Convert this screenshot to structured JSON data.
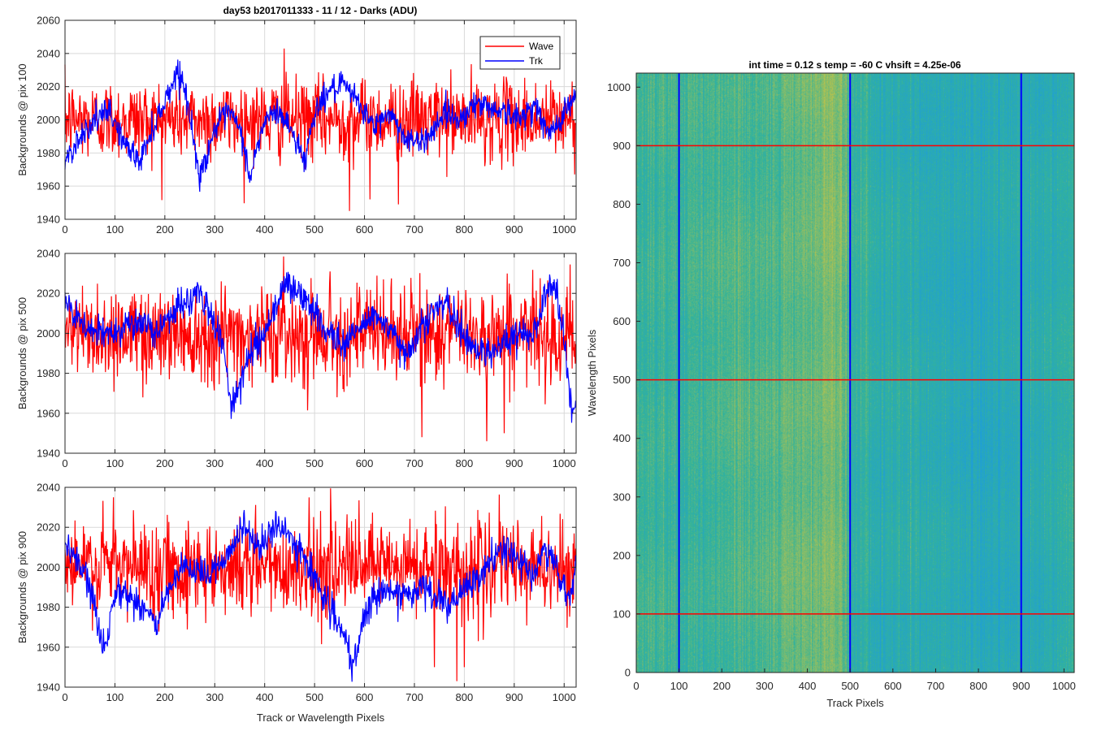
{
  "figure_title": "day53 b2017011333 - 11 / 12 - Darks (ADU)",
  "heatmap_title": "int time = 0.12 s    temp = -60 C    vhsift = 4.25e-06",
  "colors": {
    "wave": "#ff0000",
    "trk": "#0000ff",
    "grid": "#d9d9d9",
    "heat_low": "#1f9ed8",
    "heat_mid": "#33b39a",
    "heat_high": "#b8c24d"
  },
  "chart_data": [
    {
      "type": "line",
      "ylabel": "Backgrounds @ pix 100",
      "xlabel": "",
      "xlim": [
        0,
        1024
      ],
      "ylim": [
        1940,
        2060
      ],
      "xticks": [
        0,
        100,
        200,
        300,
        400,
        500,
        600,
        700,
        800,
        900,
        1000
      ],
      "yticks": [
        1940,
        1960,
        1980,
        2000,
        2020,
        2040,
        2060
      ],
      "legend": {
        "position": "top-right",
        "entries": [
          "Wave",
          "Trk"
        ]
      },
      "grid": true,
      "series": [
        {
          "name": "Wave",
          "mean": 2000,
          "noise_amplitude": 12,
          "outliers": [
            [
              439,
              2043
            ],
            [
              668,
              1949
            ],
            [
              570,
              1945
            ],
            [
              611,
              1952
            ]
          ]
        },
        {
          "name": "Trk",
          "x": [
            0,
            30,
            60,
            90,
            120,
            150,
            180,
            210,
            225,
            240,
            270,
            300,
            330,
            355,
            370,
            400,
            430,
            460,
            480,
            500,
            530,
            560,
            590,
            620,
            650,
            680,
            710,
            740,
            760,
            790,
            820,
            850,
            880,
            910,
            940,
            970,
            1000,
            1024
          ],
          "y": [
            1975,
            1990,
            2000,
            2005,
            1985,
            1975,
            1998,
            2018,
            2030,
            2020,
            1965,
            1995,
            2005,
            1990,
            1965,
            2000,
            2005,
            1990,
            1975,
            2005,
            2018,
            2020,
            2010,
            1995,
            2005,
            1990,
            1985,
            1995,
            2005,
            2000,
            2010,
            2008,
            2005,
            2000,
            2010,
            1990,
            2005,
            2015
          ],
          "noise_amplitude": 4
        }
      ]
    },
    {
      "type": "line",
      "ylabel": "Backgrounds @ pix 500",
      "xlabel": "",
      "xlim": [
        0,
        1024
      ],
      "ylim": [
        1940,
        2040
      ],
      "xticks": [
        0,
        100,
        200,
        300,
        400,
        500,
        600,
        700,
        800,
        900,
        1000
      ],
      "yticks": [
        1940,
        1960,
        1980,
        2000,
        2020,
        2040
      ],
      "grid": true,
      "series": [
        {
          "name": "Wave",
          "mean": 2000,
          "noise_amplitude": 12,
          "outliers": [
            [
              715,
              1948
            ],
            [
              845,
              1946
            ],
            [
              880,
              1950
            ],
            [
              530,
              2025
            ]
          ]
        },
        {
          "name": "Trk",
          "x": [
            0,
            30,
            60,
            90,
            120,
            150,
            180,
            210,
            240,
            270,
            300,
            320,
            335,
            350,
            380,
            400,
            440,
            470,
            500,
            530,
            560,
            600,
            620,
            640,
            680,
            720,
            750,
            770,
            800,
            840,
            880,
            920,
            950,
            960,
            980,
            1000,
            1015,
            1024
          ],
          "y": [
            2015,
            2005,
            2000,
            2000,
            2005,
            2005,
            2000,
            2010,
            2015,
            2020,
            2005,
            1990,
            1962,
            1975,
            1995,
            2000,
            2025,
            2020,
            2010,
            2000,
            1995,
            2005,
            2010,
            2005,
            1990,
            2005,
            2015,
            2012,
            1998,
            1990,
            1995,
            2000,
            2005,
            2020,
            2025,
            2000,
            1960,
            1965
          ],
          "noise_amplitude": 4
        }
      ]
    },
    {
      "type": "line",
      "ylabel": "Backgrounds @ pix 900",
      "xlabel": "Track or Wavelength Pixels",
      "xlim": [
        0,
        1024
      ],
      "ylim": [
        1940,
        2040
      ],
      "xticks": [
        0,
        100,
        200,
        300,
        400,
        500,
        600,
        700,
        800,
        900,
        1000
      ],
      "yticks": [
        1940,
        1960,
        1980,
        2000,
        2020,
        2040
      ],
      "grid": true,
      "series": [
        {
          "name": "Wave",
          "mean": 2000,
          "noise_amplitude": 12,
          "outliers": [
            [
              97,
              2035
            ],
            [
              785,
              1943
            ],
            [
              800,
              1950
            ],
            [
              740,
              1950
            ]
          ]
        },
        {
          "name": "Trk",
          "x": [
            0,
            20,
            50,
            75,
            85,
            100,
            130,
            160,
            185,
            200,
            240,
            280,
            320,
            360,
            390,
            420,
            440,
            480,
            520,
            560,
            575,
            600,
            630,
            680,
            720,
            770,
            800,
            830,
            860,
            880,
            910,
            940,
            960,
            975,
            1000,
            1010,
            1024
          ],
          "y": [
            2010,
            2005,
            1990,
            1960,
            1965,
            1990,
            1985,
            1980,
            1970,
            1985,
            2000,
            1995,
            2005,
            2020,
            2010,
            2020,
            2018,
            2005,
            1985,
            1965,
            1948,
            1975,
            1990,
            1985,
            1990,
            1980,
            1988,
            1995,
            2005,
            2010,
            2003,
            1995,
            2010,
            2005,
            1990,
            1980,
            2005
          ],
          "noise_amplitude": 4
        }
      ]
    },
    {
      "type": "heatmap",
      "title": "int time = 0.12 s    temp = -60 C    vhsift = 4.25e-06",
      "xlabel": "Track Pixels",
      "ylabel": "Wavelength Pixels",
      "xlim": [
        0,
        1024
      ],
      "ylim": [
        0,
        1024
      ],
      "xticks": [
        0,
        100,
        200,
        300,
        400,
        500,
        600,
        700,
        800,
        900,
        1000
      ],
      "yticks": [
        0,
        100,
        200,
        300,
        400,
        500,
        600,
        700,
        800,
        900,
        1000
      ],
      "column_profile": {
        "x": [
          0,
          100,
          200,
          300,
          400,
          450,
          480,
          500,
          550,
          600,
          700,
          800,
          900,
          1000,
          1024
        ],
        "level": [
          0.55,
          0.5,
          0.55,
          0.6,
          0.7,
          0.8,
          0.7,
          0.45,
          0.4,
          0.35,
          0.3,
          0.25,
          0.3,
          0.35,
          0.45
        ]
      },
      "vertical_lines": {
        "color": "#0000ff",
        "x": [
          100,
          500,
          900
        ]
      },
      "horizontal_lines": {
        "color": "#ff0000",
        "y": [
          100,
          500,
          900
        ]
      }
    }
  ]
}
